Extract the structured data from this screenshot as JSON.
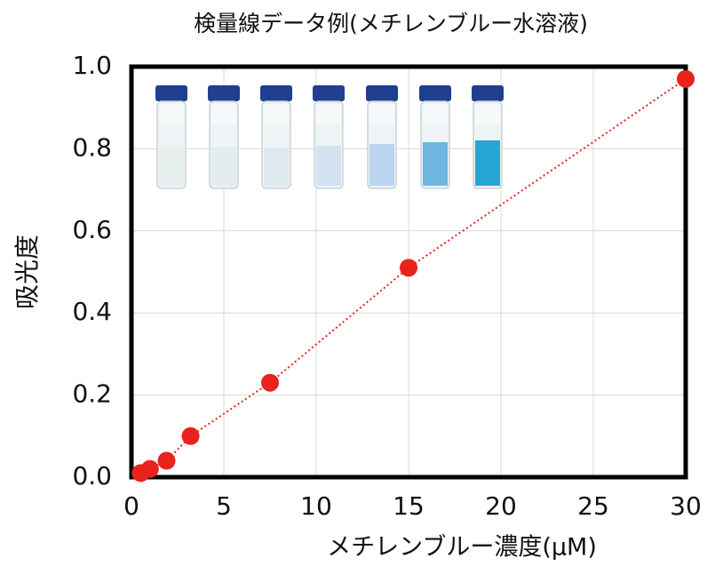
{
  "chart_data": {
    "type": "scatter",
    "title": "検量線データ例(メチレンブルー水溶液)",
    "x_label": "メチレンブルー濃度(μM)",
    "y_label": "吸光度",
    "x": [
      0.5,
      1,
      1.9,
      3.2,
      7.5,
      15,
      30
    ],
    "series": [
      {
        "color": "#e8231c",
        "values": [
          0.01,
          0.02,
          0.04,
          0.1,
          0.23,
          0.51,
          0.97
        ]
      }
    ],
    "xlim": [
      0,
      30
    ],
    "xticks": [
      0,
      5,
      10,
      15,
      20,
      25,
      30
    ],
    "ylim": [
      0,
      1
    ],
    "yticks": [
      {
        "value": 0,
        "label": "0.0"
      },
      0.2,
      0.4,
      0.6,
      0.8,
      {
        "value": 1,
        "label": "1.0"
      }
    ],
    "grid": true
  }
}
